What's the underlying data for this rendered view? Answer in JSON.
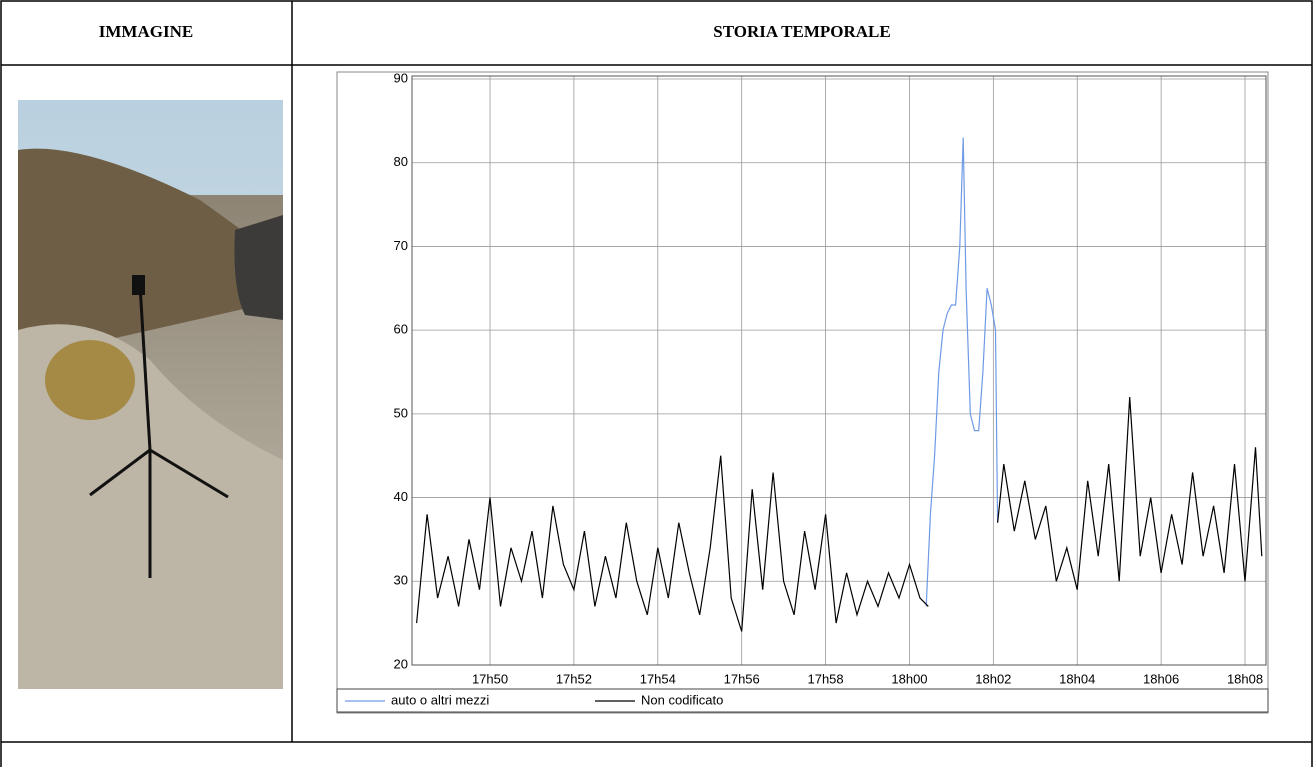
{
  "table": {
    "headers": [
      "IMMAGINE",
      "STORIA TEMPORALE"
    ]
  },
  "chart_data": {
    "type": "line",
    "xlim": [
      1068.14,
      1088.5
    ],
    "xticks": [
      {
        "value": 1070,
        "label": "17h50"
      },
      {
        "value": 1072,
        "label": "17h52"
      },
      {
        "value": 1074,
        "label": "17h54"
      },
      {
        "value": 1076,
        "label": "17h56"
      },
      {
        "value": 1078,
        "label": "17h58"
      },
      {
        "value": 1080,
        "label": "18h00"
      },
      {
        "value": 1082,
        "label": "18h02"
      },
      {
        "value": 1084,
        "label": "18h04"
      },
      {
        "value": 1086,
        "label": "18h06"
      },
      {
        "value": 1088,
        "label": "18h08"
      }
    ],
    "ylim": [
      20,
      90
    ],
    "yticks": [
      20,
      30,
      40,
      50,
      60,
      70,
      80,
      90
    ],
    "grid": true,
    "series": [
      {
        "name": "auto o altri mezzi",
        "color": "#6f9ae6",
        "x": [
          1080.4,
          1080.5,
          1080.6,
          1080.7,
          1080.8,
          1080.9,
          1081,
          1081.1,
          1081.2,
          1081.28,
          1081.35,
          1081.45,
          1081.55,
          1081.65,
          1081.75,
          1081.85,
          1081.95,
          1082.05,
          1082.1
        ],
        "values": [
          27,
          38,
          45,
          55,
          60,
          62,
          63,
          63,
          70,
          83,
          65,
          50,
          48,
          48,
          55,
          65,
          63,
          60,
          37
        ]
      },
      {
        "name": "Non codificato",
        "color": "#000000",
        "x": [
          1068.25,
          1068.5,
          1068.75,
          1069,
          1069.25,
          1069.5,
          1069.75,
          1070,
          1070.25,
          1070.5,
          1070.75,
          1071,
          1071.25,
          1071.5,
          1071.75,
          1072,
          1072.25,
          1072.5,
          1072.75,
          1073,
          1073.25,
          1073.5,
          1073.75,
          1074,
          1074.25,
          1074.5,
          1074.75,
          1075,
          1075.25,
          1075.5,
          1075.75,
          1076,
          1076.25,
          1076.5,
          1076.75,
          1077,
          1077.25,
          1077.5,
          1077.75,
          1078,
          1078.25,
          1078.5,
          1078.75,
          1079,
          1079.25,
          1079.5,
          1079.75,
          1080,
          1080.25,
          1080.45,
          1081,
          1082.1,
          1082.25,
          1082.5,
          1082.75,
          1083,
          1083.25,
          1083.5,
          1083.75,
          1084,
          1084.25,
          1084.5,
          1084.75,
          1085,
          1085.25,
          1085.5,
          1085.75,
          1086,
          1086.25,
          1086.5,
          1086.75,
          1087,
          1087.25,
          1087.5,
          1087.75,
          1088,
          1088.25,
          1088.4
        ],
        "values": [
          25,
          38,
          28,
          33,
          27,
          35,
          29,
          40,
          27,
          34,
          30,
          36,
          28,
          39,
          32,
          29,
          36,
          27,
          33,
          28,
          37,
          30,
          26,
          34,
          28,
          37,
          31,
          26,
          34,
          45,
          28,
          24,
          41,
          29,
          43,
          30,
          26,
          36,
          29,
          38,
          25,
          31,
          26,
          30,
          27,
          31,
          28,
          32,
          28,
          27,
          null,
          37,
          44,
          36,
          42,
          35,
          39,
          30,
          34,
          29,
          42,
          33,
          44,
          30,
          52,
          33,
          40,
          31,
          38,
          32,
          43,
          33,
          39,
          31,
          44,
          30,
          46,
          33
        ]
      }
    ]
  }
}
